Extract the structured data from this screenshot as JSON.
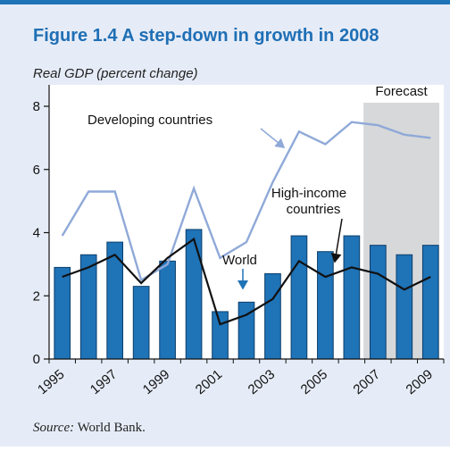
{
  "figure": {
    "title": "Figure 1.4  A step-down in growth in 2008",
    "ylabel": "Real GDP (percent change)",
    "source_label": "Source:",
    "source_text": " World Bank."
  },
  "chart_data": {
    "type": "bar",
    "title": "Figure 1.4  A step-down in growth in 2008",
    "xlabel": "",
    "ylabel": "Real GDP (percent change)",
    "ylim": [
      0,
      8
    ],
    "yticks": [
      0,
      2,
      4,
      6,
      8
    ],
    "grid": false,
    "categories": [
      1995,
      1996,
      1997,
      1998,
      1999,
      2000,
      2001,
      2002,
      2003,
      2004,
      2005,
      2006,
      2007,
      2008,
      2009
    ],
    "xtick_labels": [
      "1995",
      "1997",
      "1999",
      "2001",
      "2003",
      "2005",
      "2007",
      "2009"
    ],
    "forecast_from": 2007,
    "forecast_label": "Forecast",
    "series": [
      {
        "name": "High-income countries",
        "kind": "bar",
        "color": "#1f73b7",
        "values": [
          2.9,
          3.3,
          3.7,
          2.3,
          3.1,
          4.1,
          1.5,
          1.8,
          2.7,
          3.9,
          3.4,
          3.9,
          3.6,
          3.3,
          3.6
        ]
      },
      {
        "name": "Developing countries",
        "kind": "line",
        "color": "#8fa9d8",
        "values": [
          3.9,
          5.3,
          5.3,
          2.5,
          3.0,
          5.4,
          3.2,
          3.7,
          5.6,
          7.2,
          6.8,
          7.5,
          7.4,
          7.1,
          7.0
        ]
      },
      {
        "name": "World",
        "kind": "line",
        "color": "#111111",
        "values": [
          2.6,
          2.9,
          3.3,
          2.4,
          3.2,
          3.8,
          1.1,
          1.4,
          1.9,
          3.1,
          2.6,
          2.9,
          2.7,
          2.2,
          2.6
        ]
      }
    ],
    "annotations": {
      "developing": "Developing countries",
      "high_income_line1": "High-income",
      "high_income_line2": "countries",
      "world": "World"
    }
  }
}
